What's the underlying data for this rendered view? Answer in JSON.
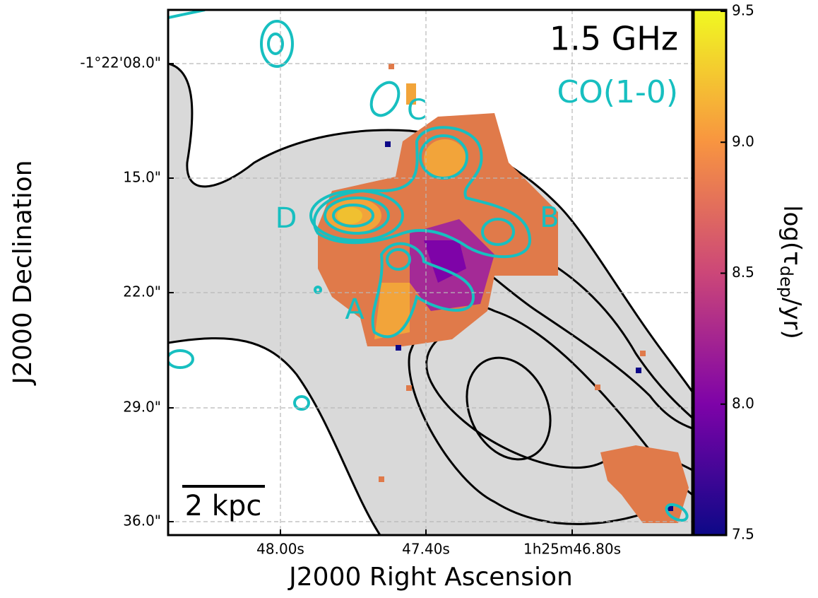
{
  "chart_data": {
    "type": "image",
    "band_label": "1.5 GHz",
    "line_label": "CO(1-0)",
    "region_labels": [
      "A",
      "B",
      "C",
      "D"
    ],
    "scale_bar": "2 kpc",
    "xlabel": "J2000 Right Ascension",
    "ylabel": "J2000 Declination",
    "x_tick_labels": [
      "48.00s",
      "47.40s",
      "1h25m46.80s"
    ],
    "y_tick_labels": [
      "-1°22'08.0\"",
      "15.0\"",
      "22.0\"",
      "29.0\"",
      "36.0\""
    ],
    "colorbar": {
      "label_parts": [
        "log(τ",
        "dep",
        "/yr)"
      ],
      "lim": [
        7.5,
        9.5
      ],
      "ticks": [
        9.5,
        {
          "value": 9,
          "label": "9.0"
        },
        8.5,
        {
          "value": 8,
          "label": "8.0"
        },
        7.5
      ]
    },
    "grid": true
  }
}
